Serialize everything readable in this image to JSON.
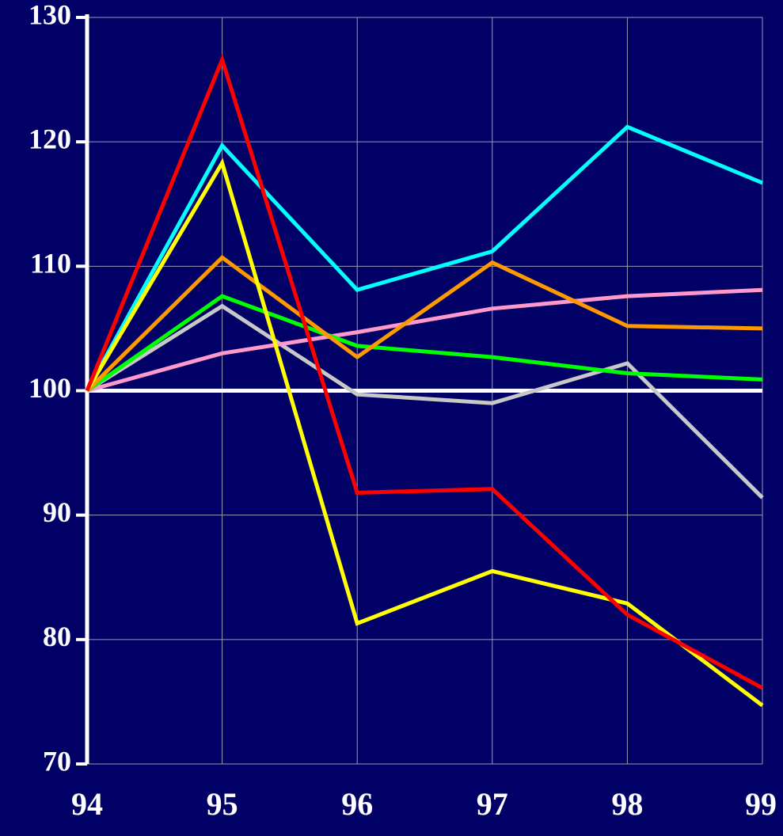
{
  "chart_data": {
    "type": "line",
    "categories": [
      "94",
      "95",
      "96",
      "97",
      "98",
      "99"
    ],
    "series": [
      {
        "color": "#c8c8c8",
        "values": [
          100,
          106.8,
          99.7,
          99.0,
          102.2,
          91.4
        ]
      },
      {
        "color": "#ff99cc",
        "values": [
          100,
          103.0,
          104.7,
          106.6,
          107.6,
          108.1
        ]
      },
      {
        "color": "#00ff00",
        "values": [
          100,
          107.6,
          103.6,
          102.7,
          101.4,
          100.9
        ]
      },
      {
        "color": "#ff9900",
        "values": [
          100,
          110.7,
          102.7,
          110.3,
          105.2,
          105.0
        ]
      },
      {
        "color": "#00ffff",
        "values": [
          100,
          119.7,
          108.1,
          111.2,
          121.2,
          116.7
        ]
      },
      {
        "color": "#ffff00",
        "values": [
          100,
          118.3,
          81.3,
          85.5,
          82.9,
          74.7
        ]
      },
      {
        "color": "#ff0000",
        "values": [
          100,
          126.6,
          91.8,
          92.1,
          82.0,
          76.1
        ]
      }
    ],
    "baseline": 100,
    "ylim": [
      70,
      130
    ],
    "yticks": [
      70,
      80,
      90,
      100,
      110,
      120,
      130
    ],
    "grid": true
  }
}
